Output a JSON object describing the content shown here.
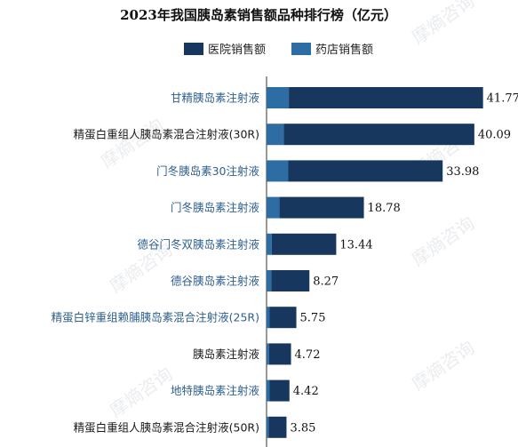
{
  "chart_data": {
    "type": "bar",
    "orientation": "horizontal",
    "stacked": true,
    "title": "2023年我国胰岛素销售额品种排行榜（亿元）",
    "legend": {
      "placement": "top",
      "entries": [
        "医院销售额",
        "药店销售额"
      ]
    },
    "categories": [
      "甘精胰岛素注射液",
      "精蛋白重组人胰岛素混合注射液(30R)",
      "门冬胰岛素30注射液",
      "门冬胰岛素注射液",
      "德谷门冬双胰岛素注射液",
      "德谷胰岛素注射液",
      "精蛋白锌重组赖脯胰岛素混合注射液(25R)",
      "胰岛素注射液",
      "地特胰岛素注射液",
      "精蛋白重组人胰岛素混合注射液(50R)"
    ],
    "series": [
      {
        "name": "药店销售额",
        "color": "#2e6da4",
        "values": [
          4.3,
          3.3,
          4.2,
          2.5,
          1.0,
          0.9,
          0.6,
          0.5,
          0.6,
          0.4
        ]
      },
      {
        "name": "医院销售额",
        "color": "#17375e",
        "values": [
          37.47,
          36.79,
          29.78,
          16.28,
          12.44,
          7.37,
          5.15,
          4.22,
          3.82,
          3.45
        ]
      }
    ],
    "totals": [
      "41.77",
      "40.09",
      "33.98",
      "18.78",
      "13.44",
      "8.27",
      "5.75",
      "4.72",
      "4.42",
      "3.85"
    ],
    "xlim": [
      0,
      42
    ],
    "label_colors": {
      "highlight": "#2e5f8e",
      "normal": "#1a1a1a"
    },
    "highlighted_rows": [
      0,
      2,
      3,
      4,
      5,
      6,
      8
    ],
    "grid": false
  },
  "watermark_text": "摩熵咨询"
}
